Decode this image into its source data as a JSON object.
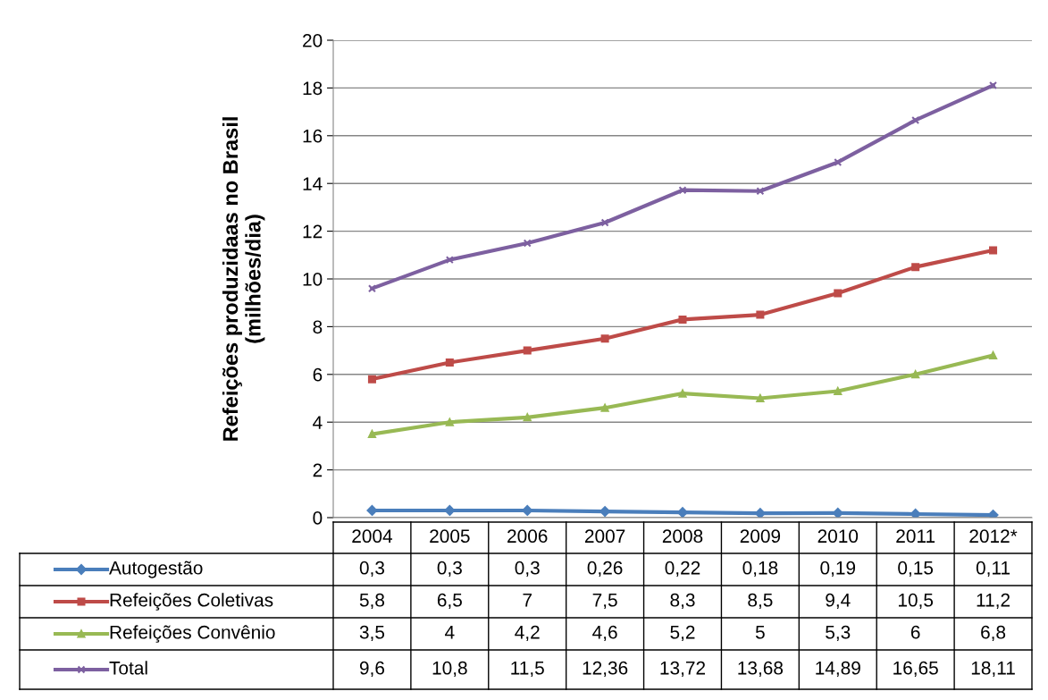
{
  "chart_data": {
    "type": "line",
    "ylabel": "Refeições produzidaas no Brasil\n(milhões/dia)",
    "categories": [
      "2004",
      "2005",
      "2006",
      "2007",
      "2008",
      "2009",
      "2010",
      "2011",
      "2012*"
    ],
    "ylim": [
      0,
      20
    ],
    "yticks": [
      0,
      2,
      4,
      6,
      8,
      10,
      12,
      14,
      16,
      18,
      20
    ],
    "grid": "y",
    "legend": "bottom",
    "line_style": "solid",
    "series": [
      {
        "name": "Autogestão",
        "color": "#4a7ebb",
        "marker": "diamond",
        "values": [
          0.3,
          0.3,
          0.3,
          0.26,
          0.22,
          0.18,
          0.19,
          0.15,
          0.11
        ],
        "value_labels": [
          "0,3",
          "0,3",
          "0,3",
          "0,26",
          "0,22",
          "0,18",
          "0,19",
          "0,15",
          "0,11"
        ]
      },
      {
        "name": "Refeições Coletivas",
        "color": "#be4b48",
        "marker": "square",
        "values": [
          5.8,
          6.5,
          7,
          7.5,
          8.3,
          8.5,
          9.4,
          10.5,
          11.2
        ],
        "value_labels": [
          "5,8",
          "6,5",
          "7",
          "7,5",
          "8,3",
          "8,5",
          "9,4",
          "10,5",
          "11,2"
        ]
      },
      {
        "name": "Refeições Convênio",
        "color": "#98b954",
        "marker": "triangle",
        "values": [
          3.5,
          4,
          4.2,
          4.6,
          5.2,
          5,
          5.3,
          6,
          6.8
        ],
        "value_labels": [
          "3,5",
          "4",
          "4,2",
          "4,6",
          "5,2",
          "5",
          "5,3",
          "6",
          "6,8"
        ]
      },
      {
        "name": "Total",
        "color": "#7d60a0",
        "marker": "cross",
        "values": [
          9.6,
          10.8,
          11.5,
          12.36,
          13.72,
          13.68,
          14.89,
          16.65,
          18.11
        ],
        "value_labels": [
          "9,6",
          "10,8",
          "11,5",
          "12,36",
          "13,72",
          "13,68",
          "14,89",
          "16,65",
          "18,11"
        ]
      }
    ]
  }
}
